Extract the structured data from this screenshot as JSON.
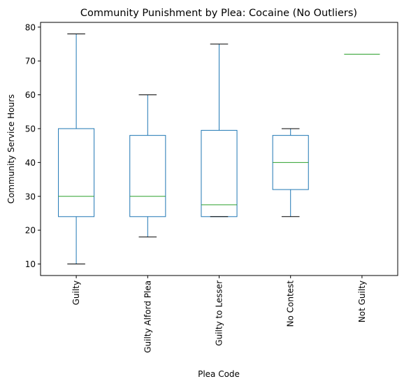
{
  "chart_data": {
    "type": "box",
    "title": "Community Punishment by Plea: Cocaine (No Outliers)",
    "xlabel": "Plea Code",
    "ylabel": "Community Service Hours",
    "ylim": [
      6.6,
      81.4
    ],
    "yticks": [
      10,
      20,
      30,
      40,
      50,
      60,
      70,
      80
    ],
    "grid": false,
    "categories": [
      "Guilty",
      "Guilty Alford Plea",
      "Guilty to Lesser",
      "No Contest",
      "Not Guilty"
    ],
    "boxes": [
      {
        "category": "Guilty",
        "whislo": 10,
        "q1": 24,
        "med": 30,
        "q3": 50,
        "whishi": 78
      },
      {
        "category": "Guilty Alford Plea",
        "whislo": 18,
        "q1": 24,
        "med": 30,
        "q3": 48,
        "whishi": 60
      },
      {
        "category": "Guilty to Lesser",
        "whislo": 24,
        "q1": 24,
        "med": 27.5,
        "q3": 49.5,
        "whishi": 75
      },
      {
        "category": "No Contest",
        "whislo": 24,
        "q1": 32,
        "med": 40,
        "q3": 48,
        "whishi": 50
      },
      {
        "category": "Not Guilty",
        "whislo": 72,
        "q1": 72,
        "med": 72,
        "q3": 72,
        "whishi": 72
      }
    ],
    "colors": {
      "box": "#1f77b4",
      "median": "#2ca02c",
      "caps": "#000000",
      "axes": "#000000"
    }
  }
}
